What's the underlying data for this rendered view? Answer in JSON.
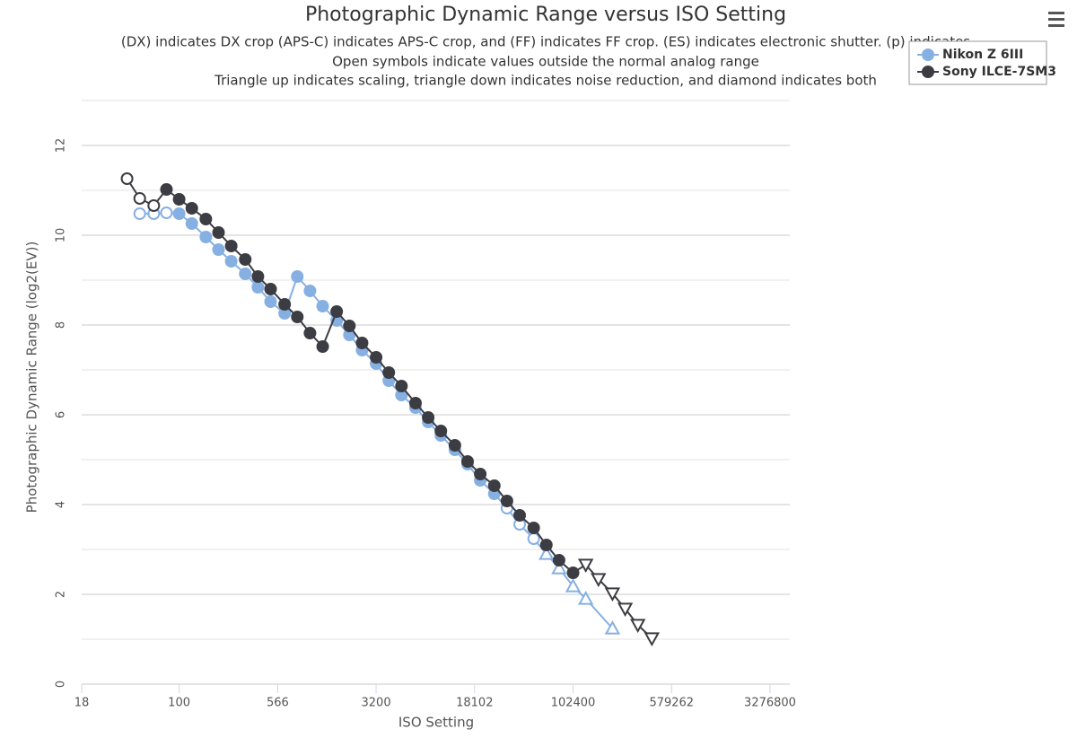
{
  "chart_data": {
    "type": "line",
    "title": "Photographic Dynamic Range versus ISO Setting",
    "subtitle": [
      "(DX) indicates DX crop (APS-C) indicates APS-C crop, and (FF) indicates FF crop. (ES) indicates electronic shutter. (p) indicates",
      "Open symbols indicate values outside the normal analog range",
      "Triangle up indicates scaling, triangle down indicates noise reduction, and diamond indicates both"
    ],
    "x_label": "ISO Setting",
    "y_label": "Photographic Dynamic Range (log2(EV))",
    "x_scale": "log",
    "xlim": [
      18,
      3276800
    ],
    "xticks": [
      18,
      100,
      566,
      3200,
      18102,
      102400,
      579262,
      3276800
    ],
    "ylim": [
      0,
      13
    ],
    "yticks": [
      0,
      2,
      4,
      6,
      8,
      10,
      12
    ],
    "minor_yticks": [
      1,
      3,
      5,
      7,
      9,
      11,
      13
    ],
    "grid": true,
    "legend": "top-right",
    "series": [
      {
        "name": "Nikon Z 6III",
        "color": "#86b0e2",
        "x": [
          50,
          64,
          80,
          100,
          125,
          160,
          200,
          250,
          320,
          400,
          500,
          640,
          800,
          1000,
          1250,
          1600,
          2000,
          2500,
          3200,
          4000,
          5000,
          6400,
          8000,
          10000,
          12800,
          16000,
          20000,
          25600,
          32000,
          40000,
          51200,
          64000,
          80000,
          102400,
          128000,
          204800
        ],
        "values": [
          10.48,
          10.48,
          10.5,
          10.48,
          10.26,
          9.96,
          9.68,
          9.42,
          9.14,
          8.84,
          8.52,
          8.26,
          9.08,
          8.76,
          8.42,
          8.1,
          7.78,
          7.44,
          7.14,
          6.76,
          6.44,
          6.16,
          5.84,
          5.54,
          5.22,
          4.9,
          4.54,
          4.24,
          3.92,
          3.56,
          3.24,
          2.9,
          2.58,
          2.18,
          1.9,
          1.24
        ],
        "markers": [
          "circle-open",
          "circle-open",
          "circle-open",
          "circle",
          "circle",
          "circle",
          "circle",
          "circle",
          "circle",
          "circle",
          "circle",
          "circle",
          "circle",
          "circle",
          "circle",
          "circle",
          "circle",
          "circle",
          "circle",
          "circle",
          "circle",
          "circle",
          "circle",
          "circle",
          "circle",
          "circle",
          "circle",
          "circle",
          "circle-open",
          "circle-open",
          "circle-open",
          "triangle-up-open",
          "triangle-up-open",
          "triangle-up-open",
          "triangle-up-open",
          "triangle-up-open"
        ]
      },
      {
        "name": "Sony ILCE-7SM3",
        "color": "#3c3c43",
        "x": [
          40,
          50,
          64,
          80,
          100,
          125,
          160,
          200,
          250,
          320,
          400,
          500,
          640,
          800,
          1000,
          1250,
          1600,
          2000,
          2500,
          3200,
          4000,
          5000,
          6400,
          8000,
          10000,
          12800,
          16000,
          20000,
          25600,
          32000,
          40000,
          51200,
          64000,
          80000,
          102400,
          128000,
          160000,
          204800,
          256000,
          320000,
          409600
        ],
        "values": [
          11.26,
          10.82,
          10.66,
          11.02,
          10.8,
          10.6,
          10.36,
          10.06,
          9.76,
          9.46,
          9.08,
          8.8,
          8.46,
          8.18,
          7.82,
          7.52,
          8.3,
          7.98,
          7.6,
          7.28,
          6.94,
          6.64,
          6.26,
          5.94,
          5.64,
          5.32,
          4.96,
          4.68,
          4.42,
          4.08,
          3.76,
          3.48,
          3.1,
          2.76,
          2.48,
          2.66,
          2.34,
          2.02,
          1.68,
          1.32,
          1.02
        ],
        "markers": [
          "circle-open",
          "circle-open",
          "circle-open",
          "circle",
          "circle",
          "circle",
          "circle",
          "circle",
          "circle",
          "circle",
          "circle",
          "circle",
          "circle",
          "circle",
          "circle",
          "circle",
          "circle",
          "circle",
          "circle",
          "circle",
          "circle",
          "circle",
          "circle",
          "circle",
          "circle",
          "circle",
          "circle",
          "circle",
          "circle",
          "circle",
          "circle",
          "circle",
          "circle",
          "circle",
          "circle",
          "triangle-down-open",
          "triangle-down-open",
          "triangle-down-open",
          "triangle-down-open",
          "triangle-down-open",
          "triangle-down-open"
        ]
      }
    ]
  }
}
